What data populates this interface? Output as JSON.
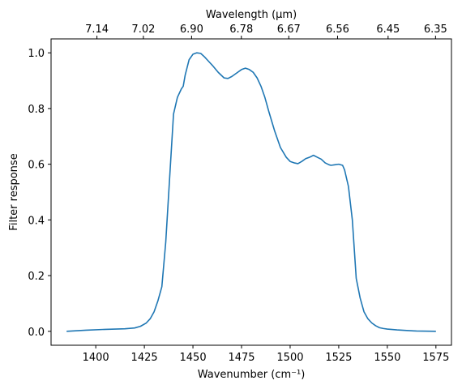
{
  "chart_data": {
    "type": "line",
    "title": "",
    "xlabel": "Wavenumber (cm⁻¹)",
    "ylabel": "Filter response",
    "top_xlabel": "Wavelength (μm)",
    "xlim": [
      1377,
      1583
    ],
    "ylim": [
      -0.05,
      1.05
    ],
    "grid": false,
    "x_ticks": [
      1400,
      1425,
      1450,
      1475,
      1500,
      1525,
      1550,
      1575
    ],
    "x_tick_labels": [
      "1400",
      "1425",
      "1450",
      "1475",
      "1500",
      "1525",
      "1550",
      "1575"
    ],
    "y_ticks": [
      0.0,
      0.2,
      0.4,
      0.6,
      0.8,
      1.0
    ],
    "y_tick_labels": [
      "0.0",
      "0.2",
      "0.4",
      "0.6",
      "0.8",
      "1.0"
    ],
    "top_ticks": [
      {
        "at_wavenumber": 1400.6,
        "label": "7.14"
      },
      {
        "at_wavenumber": 1424.5,
        "label": "7.02"
      },
      {
        "at_wavenumber": 1449.3,
        "label": "6.90"
      },
      {
        "at_wavenumber": 1474.9,
        "label": "6.78"
      },
      {
        "at_wavenumber": 1499.3,
        "label": "6.67"
      },
      {
        "at_wavenumber": 1524.4,
        "label": "6.56"
      },
      {
        "at_wavenumber": 1550.4,
        "label": "6.45"
      },
      {
        "at_wavenumber": 1574.8,
        "label": "6.35"
      }
    ],
    "series": [
      {
        "color": "#1f77b4",
        "x": [
          1385,
          1395,
          1405,
          1415,
          1420,
          1423,
          1426,
          1428,
          1430,
          1432,
          1434,
          1436,
          1438,
          1440,
          1442,
          1444,
          1445,
          1446,
          1448,
          1450,
          1452,
          1454,
          1456,
          1458,
          1460,
          1463,
          1466,
          1468,
          1470,
          1473,
          1475,
          1477,
          1479,
          1481,
          1483,
          1485,
          1487,
          1489,
          1492,
          1495,
          1498,
          1500,
          1502,
          1504,
          1506,
          1508,
          1510,
          1512,
          1514,
          1516,
          1518,
          1520,
          1521,
          1523,
          1525,
          1527,
          1528,
          1530,
          1532,
          1534,
          1536,
          1538,
          1540,
          1542,
          1544,
          1546,
          1548,
          1550,
          1555,
          1560,
          1565,
          1575
        ],
        "values": [
          0.0,
          0.004,
          0.007,
          0.009,
          0.012,
          0.018,
          0.03,
          0.045,
          0.07,
          0.11,
          0.16,
          0.32,
          0.55,
          0.78,
          0.84,
          0.87,
          0.88,
          0.92,
          0.975,
          0.995,
          1.0,
          0.998,
          0.985,
          0.97,
          0.955,
          0.93,
          0.91,
          0.908,
          0.915,
          0.93,
          0.94,
          0.945,
          0.94,
          0.93,
          0.91,
          0.88,
          0.84,
          0.79,
          0.72,
          0.66,
          0.625,
          0.61,
          0.605,
          0.602,
          0.61,
          0.62,
          0.625,
          0.632,
          0.625,
          0.618,
          0.605,
          0.598,
          0.596,
          0.598,
          0.6,
          0.596,
          0.58,
          0.52,
          0.4,
          0.19,
          0.12,
          0.07,
          0.045,
          0.03,
          0.02,
          0.013,
          0.01,
          0.008,
          0.005,
          0.003,
          0.001,
          0.0
        ]
      }
    ]
  }
}
